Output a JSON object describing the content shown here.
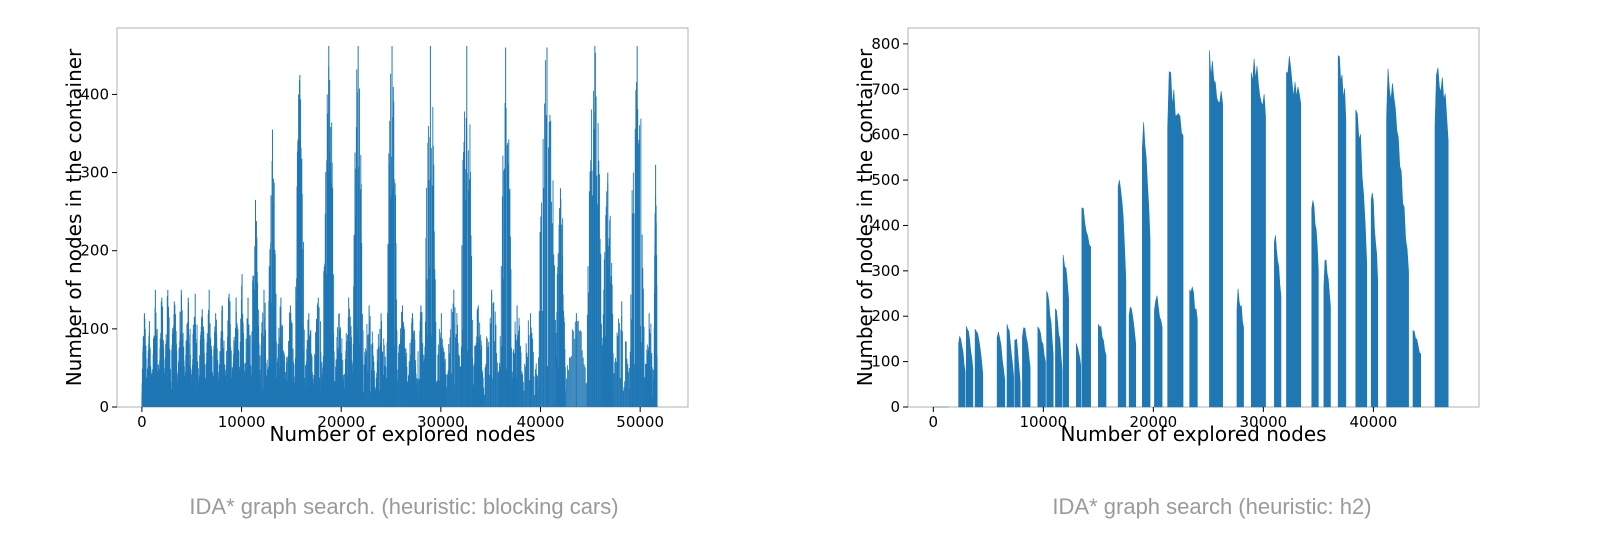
{
  "colors": {
    "bar": "#1f77b4",
    "frame": "#b0b0b0",
    "caption": "#9a9a9a",
    "text": "#000000"
  },
  "charts": [
    {
      "caption": "IDA* graph search. (heuristic: blocking cars)",
      "chart_data": {
        "type": "bar",
        "xlabel": "Number of explored nodes",
        "ylabel": "Number of nodes in the container",
        "xlim": [
          -2500,
          54800
        ],
        "ylim": [
          0,
          485
        ],
        "xticks": [
          0,
          10000,
          20000,
          30000,
          40000,
          50000
        ],
        "yticks": [
          0,
          100,
          200,
          300,
          400
        ],
        "grid": false,
        "x_range": [
          0,
          51700
        ],
        "pattern": "dense narrow spikes per iteration",
        "spike_peaks": [
          [
            0,
            120
          ],
          [
            500,
            110
          ],
          [
            1000,
            150
          ],
          [
            1700,
            140
          ],
          [
            2300,
            150
          ],
          [
            2900,
            135
          ],
          [
            3600,
            150
          ],
          [
            4300,
            140
          ],
          [
            5000,
            145
          ],
          [
            5700,
            125
          ],
          [
            6400,
            150
          ],
          [
            7100,
            120
          ],
          [
            7700,
            130
          ],
          [
            8400,
            145
          ],
          [
            9100,
            140
          ],
          [
            9800,
            170
          ],
          [
            10300,
            140
          ],
          [
            11000,
            265
          ],
          [
            11800,
            150
          ],
          [
            12700,
            355
          ],
          [
            13500,
            140
          ],
          [
            14400,
            130
          ],
          [
            15400,
            425
          ],
          [
            16300,
            120
          ],
          [
            17200,
            140
          ],
          [
            18200,
            462
          ],
          [
            19300,
            120
          ],
          [
            20300,
            140
          ],
          [
            21200,
            462
          ],
          [
            22200,
            130
          ],
          [
            23400,
            120
          ],
          [
            24600,
            462
          ],
          [
            25600,
            130
          ],
          [
            26700,
            120
          ],
          [
            27600,
            130
          ],
          [
            28400,
            462
          ],
          [
            29500,
            120
          ],
          [
            30600,
            150
          ],
          [
            32000,
            462
          ],
          [
            33200,
            130
          ],
          [
            34300,
            150
          ],
          [
            35900,
            460
          ],
          [
            37100,
            130
          ],
          [
            38200,
            120
          ],
          [
            39800,
            460
          ],
          [
            41500,
            280
          ],
          [
            42500,
            120
          ],
          [
            44700,
            462
          ],
          [
            46200,
            300
          ],
          [
            47300,
            135
          ],
          [
            49000,
            462
          ],
          [
            50400,
            120
          ],
          [
            51400,
            310
          ]
        ]
      }
    },
    {
      "caption": "IDA* graph search (heuristic: h2)",
      "chart_data": {
        "type": "bar",
        "xlabel": "Number of explored nodes",
        "ylabel": "Number of nodes in the container",
        "xlim": [
          -2300,
          49600
        ],
        "ylim": [
          0,
          835
        ],
        "xticks": [
          0,
          10000,
          20000,
          30000,
          40000
        ],
        "yticks": [
          0,
          100,
          200,
          300,
          400,
          500,
          600,
          700,
          800
        ],
        "grid": false,
        "x_range": [
          0,
          46800
        ],
        "pattern": "solid filled blocks with gaps",
        "blocks": [
          [
            0,
            1400,
            0,
            160
          ],
          [
            2300,
            2900,
            170,
            80
          ],
          [
            3000,
            3600,
            185,
            90
          ],
          [
            3800,
            4500,
            180,
            80
          ],
          [
            5800,
            6500,
            175,
            60
          ],
          [
            6700,
            7300,
            190,
            70
          ],
          [
            7400,
            7900,
            170,
            60
          ],
          [
            8100,
            8800,
            200,
            90
          ],
          [
            9500,
            10200,
            185,
            100
          ],
          [
            10300,
            10900,
            270,
            120
          ],
          [
            11100,
            11700,
            220,
            90
          ],
          [
            11800,
            12300,
            350,
            250
          ],
          [
            13000,
            13400,
            150,
            100
          ],
          [
            13500,
            14300,
            450,
            360
          ],
          [
            15000,
            15700,
            190,
            120
          ],
          [
            16800,
            17500,
            550,
            300
          ],
          [
            17800,
            18400,
            240,
            150
          ],
          [
            19000,
            19700,
            650,
            400
          ],
          [
            20100,
            20800,
            260,
            180
          ],
          [
            21300,
            22700,
            750,
            620
          ],
          [
            23300,
            24000,
            280,
            200
          ],
          [
            25100,
            26300,
            790,
            690
          ],
          [
            27600,
            28200,
            270,
            180
          ],
          [
            28900,
            30200,
            780,
            690
          ],
          [
            31000,
            31600,
            400,
            260
          ],
          [
            32100,
            33400,
            780,
            700
          ],
          [
            34400,
            35000,
            490,
            330
          ],
          [
            35500,
            36100,
            350,
            230
          ],
          [
            36800,
            37500,
            780,
            680
          ],
          [
            38400,
            39400,
            690,
            350
          ],
          [
            39800,
            40400,
            500,
            300
          ],
          [
            41200,
            43200,
            780,
            300
          ],
          [
            43600,
            44300,
            170,
            120
          ],
          [
            45600,
            46800,
            780,
            650
          ]
        ]
      }
    }
  ]
}
